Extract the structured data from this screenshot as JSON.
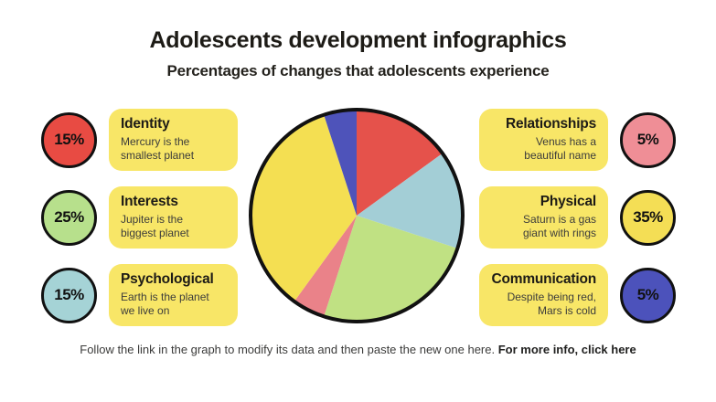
{
  "header": {
    "title": "Adolescents development infographics",
    "subtitle": "Percentages of changes that adolescents experience"
  },
  "left_items": [
    {
      "percent": "15%",
      "title": "Identity",
      "description": "Mercury is the\nsmallest planet",
      "circle_color": "#E84B43"
    },
    {
      "percent": "25%",
      "title": "Interests",
      "description": "Jupiter is the\nbiggest planet",
      "circle_color": "#B7E08C"
    },
    {
      "percent": "15%",
      "title": "Psychological",
      "description": "Earth is the planet\nwe live on",
      "circle_color": "#A5D3D6"
    }
  ],
  "right_items": [
    {
      "percent": "5%",
      "title": "Relationships",
      "description": "Venus has a\nbeautiful name",
      "circle_color": "#EF8E96"
    },
    {
      "percent": "35%",
      "title": "Physical",
      "description": "Saturn is a gas\ngiant with rings",
      "circle_color": "#F4DE55"
    },
    {
      "percent": "5%",
      "title": "Communication",
      "description": "Despite being red,\nMars is cold",
      "circle_color": "#4C52BB"
    }
  ],
  "footer": {
    "text": "Follow the link in the graph to modify its data and then paste the new one here.",
    "link_text": "For more info, click here"
  },
  "colors": {
    "card_background": "#F8E667",
    "outline": "#111111"
  },
  "chart_data": {
    "type": "pie",
    "title": "Percentages of changes that adolescents experience",
    "labels": [
      "Identity",
      "Psychological",
      "Interests",
      "Relationships",
      "Physical",
      "Communication"
    ],
    "values": [
      15,
      15,
      25,
      5,
      35,
      5
    ],
    "colors": [
      "#E5524B",
      "#A3CED6",
      "#C0E183",
      "#EA8289",
      "#F4DF52",
      "#4E53BA"
    ],
    "start_angle_deg": -90,
    "direction": "clockwise",
    "stroke": "#111111",
    "legend": "none"
  }
}
